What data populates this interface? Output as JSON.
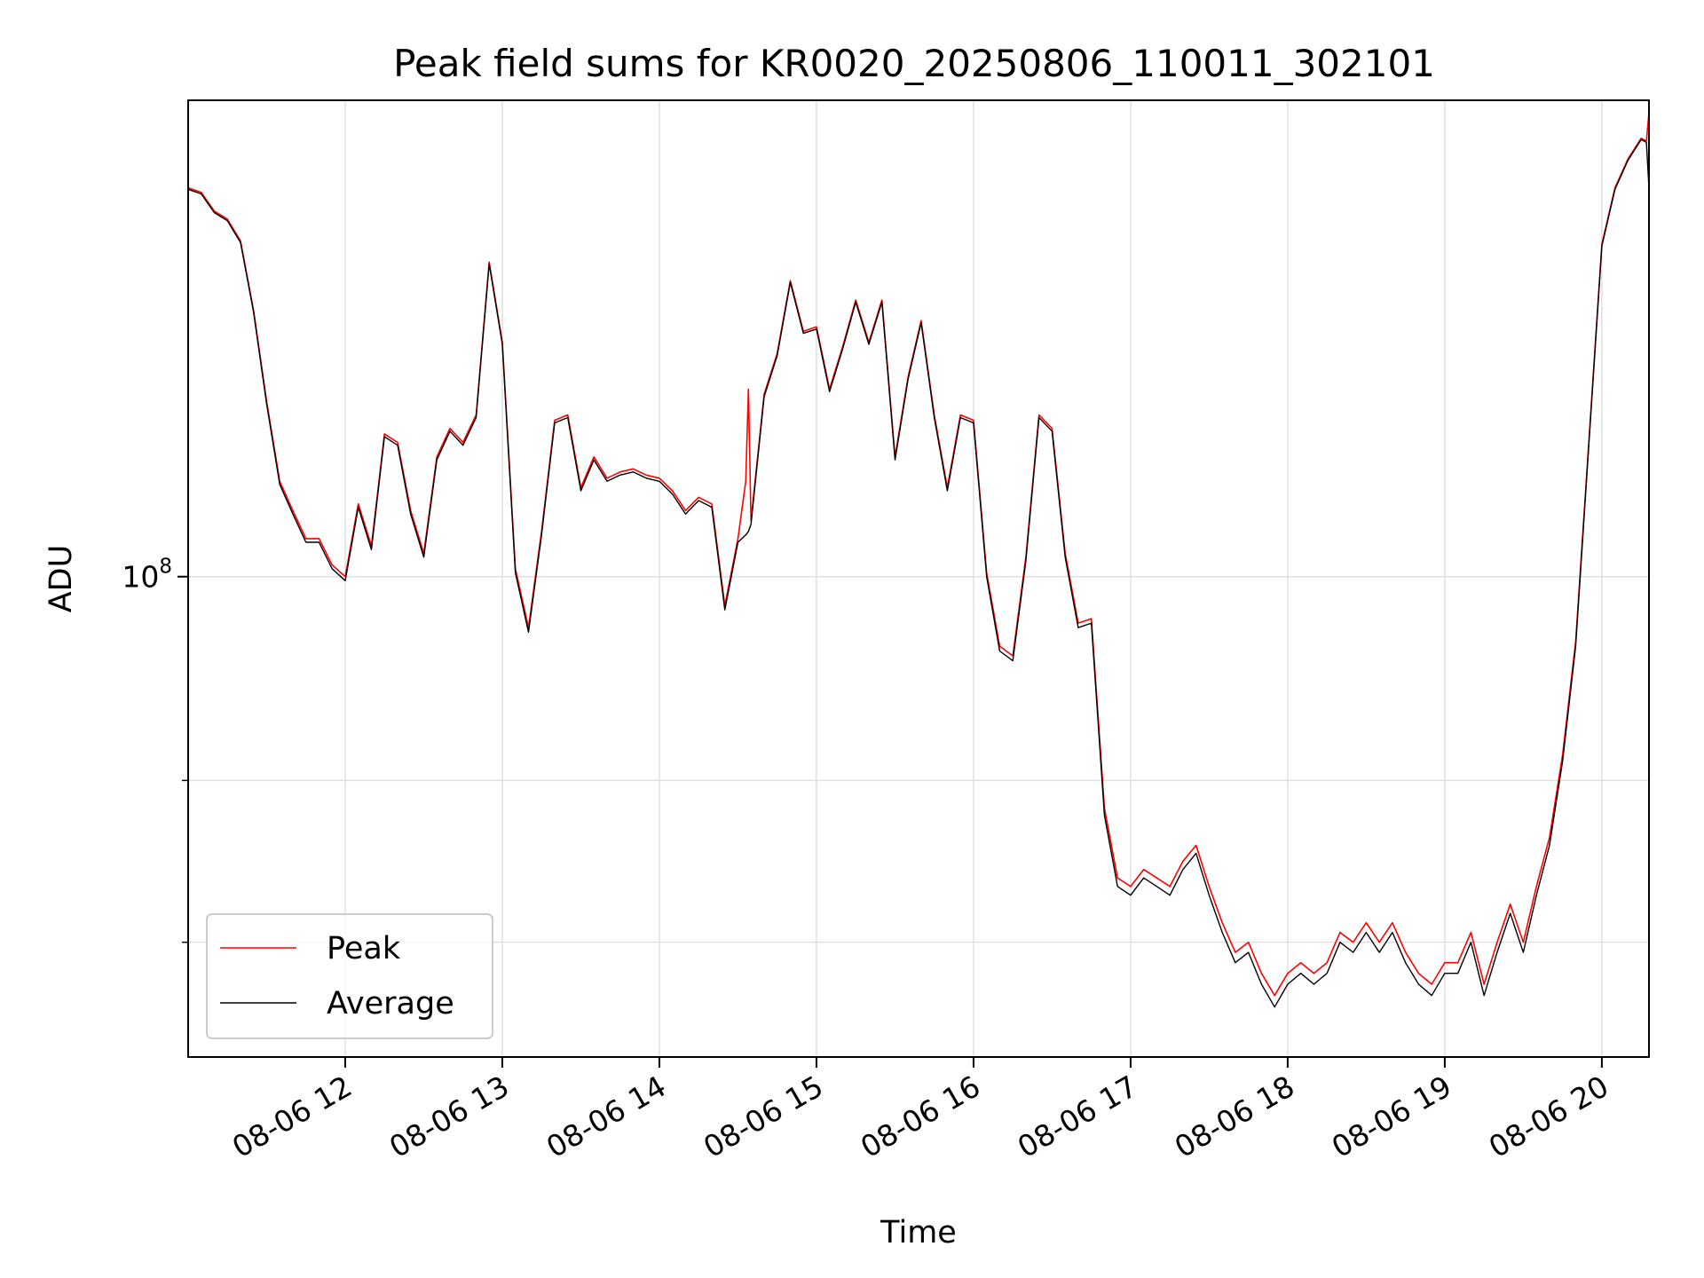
{
  "chart_data": {
    "type": "line",
    "title": "Peak field sums for KR0020_20250806_110011_302101",
    "xlabel": "Time",
    "ylabel": "ADU",
    "y_scale": "log",
    "grid": true,
    "legend_position": "lower-left",
    "xlim": [
      "08-06 11:00",
      "08-06 20:18"
    ],
    "ylim": [
      30000000,
      330000000
    ],
    "x_tick_labels": [
      "08-06 12",
      "08-06 13",
      "08-06 14",
      "08-06 15",
      "08-06 16",
      "08-06 17",
      "08-06 18",
      "08-06 19",
      "08-06 20"
    ],
    "y_tick_label": {
      "base": "10",
      "exponent": "8"
    },
    "series": [
      {
        "name": "Peak",
        "color": "#ff0000",
        "x": [
          "08-06 11:00",
          "08-06 11:05",
          "08-06 11:10",
          "08-06 11:15",
          "08-06 11:20",
          "08-06 11:25",
          "08-06 11:30",
          "08-06 11:35",
          "08-06 11:40",
          "08-06 11:45",
          "08-06 11:50",
          "08-06 11:55",
          "08-06 12:00",
          "08-06 12:05",
          "08-06 12:10",
          "08-06 12:15",
          "08-06 12:20",
          "08-06 12:25",
          "08-06 12:30",
          "08-06 12:35",
          "08-06 12:40",
          "08-06 12:45",
          "08-06 12:50",
          "08-06 12:55",
          "08-06 13:00",
          "08-06 13:05",
          "08-06 13:10",
          "08-06 13:15",
          "08-06 13:20",
          "08-06 13:25",
          "08-06 13:30",
          "08-06 13:35",
          "08-06 13:40",
          "08-06 13:45",
          "08-06 13:50",
          "08-06 13:55",
          "08-06 14:00",
          "08-06 14:05",
          "08-06 14:10",
          "08-06 14:15",
          "08-06 14:20",
          "08-06 14:25",
          "08-06 14:30",
          "08-06 14:33",
          "08-06 14:34",
          "08-06 14:35",
          "08-06 14:40",
          "08-06 14:45",
          "08-06 14:50",
          "08-06 14:55",
          "08-06 15:00",
          "08-06 15:05",
          "08-06 15:10",
          "08-06 15:15",
          "08-06 15:20",
          "08-06 15:25",
          "08-06 15:30",
          "08-06 15:35",
          "08-06 15:40",
          "08-06 15:45",
          "08-06 15:50",
          "08-06 15:55",
          "08-06 16:00",
          "08-06 16:05",
          "08-06 16:10",
          "08-06 16:15",
          "08-06 16:20",
          "08-06 16:25",
          "08-06 16:30",
          "08-06 16:35",
          "08-06 16:40",
          "08-06 16:45",
          "08-06 16:50",
          "08-06 16:55",
          "08-06 17:00",
          "08-06 17:05",
          "08-06 17:10",
          "08-06 17:15",
          "08-06 17:20",
          "08-06 17:25",
          "08-06 17:30",
          "08-06 17:35",
          "08-06 17:40",
          "08-06 17:45",
          "08-06 17:50",
          "08-06 17:55",
          "08-06 18:00",
          "08-06 18:05",
          "08-06 18:10",
          "08-06 18:15",
          "08-06 18:20",
          "08-06 18:25",
          "08-06 18:30",
          "08-06 18:35",
          "08-06 18:40",
          "08-06 18:45",
          "08-06 18:50",
          "08-06 18:55",
          "08-06 19:00",
          "08-06 19:05",
          "08-06 19:10",
          "08-06 19:15",
          "08-06 19:20",
          "08-06 19:25",
          "08-06 19:30",
          "08-06 19:35",
          "08-06 19:40",
          "08-06 19:45",
          "08-06 19:50",
          "08-06 19:55",
          "08-06 20:00",
          "08-06 20:05",
          "08-06 20:10",
          "08-06 20:15",
          "08-06 20:17",
          "08-06 20:18"
        ],
        "values": [
          265,
          262,
          250,
          245,
          232,
          195,
          155,
          127,
          118,
          110,
          110,
          103,
          100,
          120,
          108,
          143,
          140,
          118,
          106,
          135,
          145,
          140,
          150,
          220,
          180,
          102,
          88,
          112,
          148,
          150,
          125,
          135,
          128,
          130,
          131,
          129,
          128,
          124,
          118,
          122,
          120,
          93,
          110,
          127,
          160,
          115,
          158,
          175,
          210,
          185,
          187,
          160,
          178,
          200,
          180,
          200,
          135,
          165,
          190,
          150,
          125,
          150,
          148,
          101,
          84,
          82,
          105,
          150,
          145,
          106,
          89,
          90,
          56,
          47,
          46,
          48,
          47,
          46,
          49,
          51,
          46,
          42,
          39,
          40,
          37,
          35,
          37,
          38,
          37,
          38,
          41,
          40,
          42,
          40,
          42,
          39,
          37,
          36,
          38,
          38,
          41,
          36,
          40,
          44,
          40,
          46,
          52,
          64,
          85,
          140,
          230,
          265,
          285,
          300,
          298,
          320
        ]
      },
      {
        "name": "Average",
        "color": "#000000",
        "x": [
          "08-06 11:00",
          "08-06 11:05",
          "08-06 11:10",
          "08-06 11:15",
          "08-06 11:20",
          "08-06 11:25",
          "08-06 11:30",
          "08-06 11:35",
          "08-06 11:40",
          "08-06 11:45",
          "08-06 11:50",
          "08-06 11:55",
          "08-06 12:00",
          "08-06 12:05",
          "08-06 12:10",
          "08-06 12:15",
          "08-06 12:20",
          "08-06 12:25",
          "08-06 12:30",
          "08-06 12:35",
          "08-06 12:40",
          "08-06 12:45",
          "08-06 12:50",
          "08-06 12:55",
          "08-06 13:00",
          "08-06 13:05",
          "08-06 13:10",
          "08-06 13:15",
          "08-06 13:20",
          "08-06 13:25",
          "08-06 13:30",
          "08-06 13:35",
          "08-06 13:40",
          "08-06 13:45",
          "08-06 13:50",
          "08-06 13:55",
          "08-06 14:00",
          "08-06 14:05",
          "08-06 14:10",
          "08-06 14:15",
          "08-06 14:20",
          "08-06 14:25",
          "08-06 14:30",
          "08-06 14:33",
          "08-06 14:34",
          "08-06 14:35",
          "08-06 14:40",
          "08-06 14:45",
          "08-06 14:50",
          "08-06 14:55",
          "08-06 15:00",
          "08-06 15:05",
          "08-06 15:10",
          "08-06 15:15",
          "08-06 15:20",
          "08-06 15:25",
          "08-06 15:30",
          "08-06 15:35",
          "08-06 15:40",
          "08-06 15:45",
          "08-06 15:50",
          "08-06 15:55",
          "08-06 16:00",
          "08-06 16:05",
          "08-06 16:10",
          "08-06 16:15",
          "08-06 16:20",
          "08-06 16:25",
          "08-06 16:30",
          "08-06 16:35",
          "08-06 16:40",
          "08-06 16:45",
          "08-06 16:50",
          "08-06 16:55",
          "08-06 17:00",
          "08-06 17:05",
          "08-06 17:10",
          "08-06 17:15",
          "08-06 17:20",
          "08-06 17:25",
          "08-06 17:30",
          "08-06 17:35",
          "08-06 17:40",
          "08-06 17:45",
          "08-06 17:50",
          "08-06 17:55",
          "08-06 18:00",
          "08-06 18:05",
          "08-06 18:10",
          "08-06 18:15",
          "08-06 18:20",
          "08-06 18:25",
          "08-06 18:30",
          "08-06 18:35",
          "08-06 18:40",
          "08-06 18:45",
          "08-06 18:50",
          "08-06 18:55",
          "08-06 19:00",
          "08-06 19:05",
          "08-06 19:10",
          "08-06 19:15",
          "08-06 19:20",
          "08-06 19:25",
          "08-06 19:30",
          "08-06 19:35",
          "08-06 19:40",
          "08-06 19:45",
          "08-06 19:50",
          "08-06 19:55",
          "08-06 20:00",
          "08-06 20:05",
          "08-06 20:10",
          "08-06 20:15",
          "08-06 20:17",
          "08-06 20:18"
        ],
        "values": [
          264,
          261,
          249,
          244,
          231,
          194,
          154,
          126,
          117,
          109,
          109,
          102,
          99,
          119,
          107,
          142,
          139,
          117,
          105,
          134,
          144,
          139,
          149,
          219,
          179,
          101,
          87,
          111,
          147,
          149,
          124,
          134,
          127,
          129,
          130,
          128,
          127,
          123,
          117,
          121,
          119,
          92,
          109,
          111,
          112,
          114,
          157,
          174,
          209,
          184,
          186,
          159,
          177,
          199,
          179,
          199,
          134,
          164,
          189,
          149,
          124,
          149,
          147,
          100,
          83,
          81,
          104,
          149,
          144,
          105,
          88,
          89,
          55,
          46,
          45,
          47,
          46,
          45,
          48,
          50,
          45,
          41,
          38,
          39,
          36,
          34,
          36,
          37,
          36,
          37,
          40,
          39,
          41,
          39,
          41,
          38,
          36,
          35,
          37,
          37,
          40,
          35,
          39,
          43,
          39,
          45,
          51,
          63,
          84,
          139,
          229,
          264,
          284,
          299,
          297,
          265
        ]
      }
    ]
  }
}
